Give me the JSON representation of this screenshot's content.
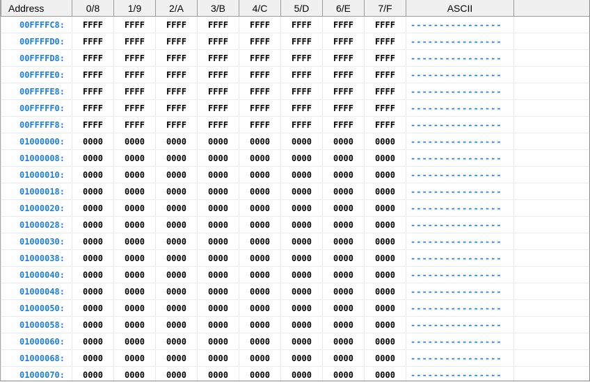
{
  "headers": [
    "Address",
    "0/8",
    "1/9",
    "2/A",
    "3/B",
    "4/C",
    "5/D",
    "6/E",
    "7/F",
    "ASCII",
    ""
  ],
  "colors": {
    "address": "#1e7fe0",
    "ascii": "#1e7fe0",
    "header_bg": "#f0f0f0"
  },
  "rows": [
    {
      "addr": "00FFFFC8:",
      "words": [
        "FFFF",
        "FFFF",
        "FFFF",
        "FFFF",
        "FFFF",
        "FFFF",
        "FFFF",
        "FFFF"
      ],
      "ascii": "----------------"
    },
    {
      "addr": "00FFFFD0:",
      "words": [
        "FFFF",
        "FFFF",
        "FFFF",
        "FFFF",
        "FFFF",
        "FFFF",
        "FFFF",
        "FFFF"
      ],
      "ascii": "----------------"
    },
    {
      "addr": "00FFFFD8:",
      "words": [
        "FFFF",
        "FFFF",
        "FFFF",
        "FFFF",
        "FFFF",
        "FFFF",
        "FFFF",
        "FFFF"
      ],
      "ascii": "----------------"
    },
    {
      "addr": "00FFFFE0:",
      "words": [
        "FFFF",
        "FFFF",
        "FFFF",
        "FFFF",
        "FFFF",
        "FFFF",
        "FFFF",
        "FFFF"
      ],
      "ascii": "----------------"
    },
    {
      "addr": "00FFFFE8:",
      "words": [
        "FFFF",
        "FFFF",
        "FFFF",
        "FFFF",
        "FFFF",
        "FFFF",
        "FFFF",
        "FFFF"
      ],
      "ascii": "----------------"
    },
    {
      "addr": "00FFFFF0:",
      "words": [
        "FFFF",
        "FFFF",
        "FFFF",
        "FFFF",
        "FFFF",
        "FFFF",
        "FFFF",
        "FFFF"
      ],
      "ascii": "----------------"
    },
    {
      "addr": "00FFFFF8:",
      "words": [
        "FFFF",
        "FFFF",
        "FFFF",
        "FFFF",
        "FFFF",
        "FFFF",
        "FFFF",
        "FFFF"
      ],
      "ascii": "----------------"
    },
    {
      "addr": "01000000:",
      "words": [
        "0000",
        "0000",
        "0000",
        "0000",
        "0000",
        "0000",
        "0000",
        "0000"
      ],
      "ascii": "----------------"
    },
    {
      "addr": "01000008:",
      "words": [
        "0000",
        "0000",
        "0000",
        "0000",
        "0000",
        "0000",
        "0000",
        "0000"
      ],
      "ascii": "----------------"
    },
    {
      "addr": "01000010:",
      "words": [
        "0000",
        "0000",
        "0000",
        "0000",
        "0000",
        "0000",
        "0000",
        "0000"
      ],
      "ascii": "----------------"
    },
    {
      "addr": "01000018:",
      "words": [
        "0000",
        "0000",
        "0000",
        "0000",
        "0000",
        "0000",
        "0000",
        "0000"
      ],
      "ascii": "----------------"
    },
    {
      "addr": "01000020:",
      "words": [
        "0000",
        "0000",
        "0000",
        "0000",
        "0000",
        "0000",
        "0000",
        "0000"
      ],
      "ascii": "----------------"
    },
    {
      "addr": "01000028:",
      "words": [
        "0000",
        "0000",
        "0000",
        "0000",
        "0000",
        "0000",
        "0000",
        "0000"
      ],
      "ascii": "----------------"
    },
    {
      "addr": "01000030:",
      "words": [
        "0000",
        "0000",
        "0000",
        "0000",
        "0000",
        "0000",
        "0000",
        "0000"
      ],
      "ascii": "----------------"
    },
    {
      "addr": "01000038:",
      "words": [
        "0000",
        "0000",
        "0000",
        "0000",
        "0000",
        "0000",
        "0000",
        "0000"
      ],
      "ascii": "----------------"
    },
    {
      "addr": "01000040:",
      "words": [
        "0000",
        "0000",
        "0000",
        "0000",
        "0000",
        "0000",
        "0000",
        "0000"
      ],
      "ascii": "----------------"
    },
    {
      "addr": "01000048:",
      "words": [
        "0000",
        "0000",
        "0000",
        "0000",
        "0000",
        "0000",
        "0000",
        "0000"
      ],
      "ascii": "----------------"
    },
    {
      "addr": "01000050:",
      "words": [
        "0000",
        "0000",
        "0000",
        "0000",
        "0000",
        "0000",
        "0000",
        "0000"
      ],
      "ascii": "----------------"
    },
    {
      "addr": "01000058:",
      "words": [
        "0000",
        "0000",
        "0000",
        "0000",
        "0000",
        "0000",
        "0000",
        "0000"
      ],
      "ascii": "----------------"
    },
    {
      "addr": "01000060:",
      "words": [
        "0000",
        "0000",
        "0000",
        "0000",
        "0000",
        "0000",
        "0000",
        "0000"
      ],
      "ascii": "----------------"
    },
    {
      "addr": "01000068:",
      "words": [
        "0000",
        "0000",
        "0000",
        "0000",
        "0000",
        "0000",
        "0000",
        "0000"
      ],
      "ascii": "----------------"
    },
    {
      "addr": "01000070:",
      "words": [
        "0000",
        "0000",
        "0000",
        "0000",
        "0000",
        "0000",
        "0000",
        "0000"
      ],
      "ascii": "----------------"
    }
  ]
}
